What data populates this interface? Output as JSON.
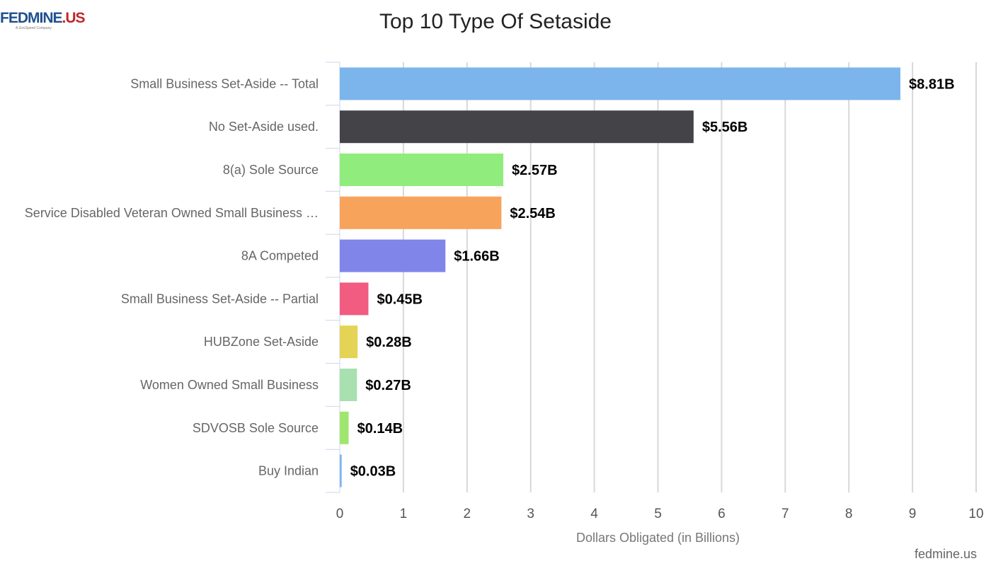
{
  "brand": {
    "logo_text": "FEDMINE",
    "logo_suffix": ".US",
    "logo_tagline": "A GovSpend Company",
    "credit": "fedmine.us"
  },
  "chart_data": {
    "type": "bar",
    "orientation": "horizontal",
    "title": "Top 10 Type Of Setaside",
    "xlabel": "Dollars Obligated (in Billions)",
    "ylabel": "",
    "xlim": [
      0,
      10
    ],
    "ticks": [
      "0",
      "1",
      "2",
      "3",
      "4",
      "5",
      "6",
      "7",
      "8",
      "9",
      "10"
    ],
    "grid": true,
    "categories": [
      "Small Business Set-Aside -- Total",
      "No Set-Aside used.",
      "8(a) Sole Source",
      "Service Disabled Veteran Owned Small Business …",
      "8A Competed",
      "Small Business Set-Aside -- Partial",
      "HUBZone Set-Aside",
      "Women Owned Small Business",
      "SDVOSB Sole Source",
      "Buy Indian"
    ],
    "values": [
      8.81,
      5.56,
      2.57,
      2.54,
      1.66,
      0.45,
      0.28,
      0.27,
      0.14,
      0.03
    ],
    "value_labels": [
      "$8.81B",
      "$5.56B",
      "$2.57B",
      "$2.54B",
      "$1.66B",
      "$0.45B",
      "$0.28B",
      "$0.27B",
      "$0.14B",
      "$0.03B"
    ],
    "colors": [
      "#7cb5ec",
      "#434348",
      "#90ed7d",
      "#f7a35c",
      "#8085e9",
      "#f15c80",
      "#e4d354",
      "#a8e0b0",
      "#a0e66e",
      "#7cb5ec"
    ],
    "bar_colors_note_free": true
  }
}
